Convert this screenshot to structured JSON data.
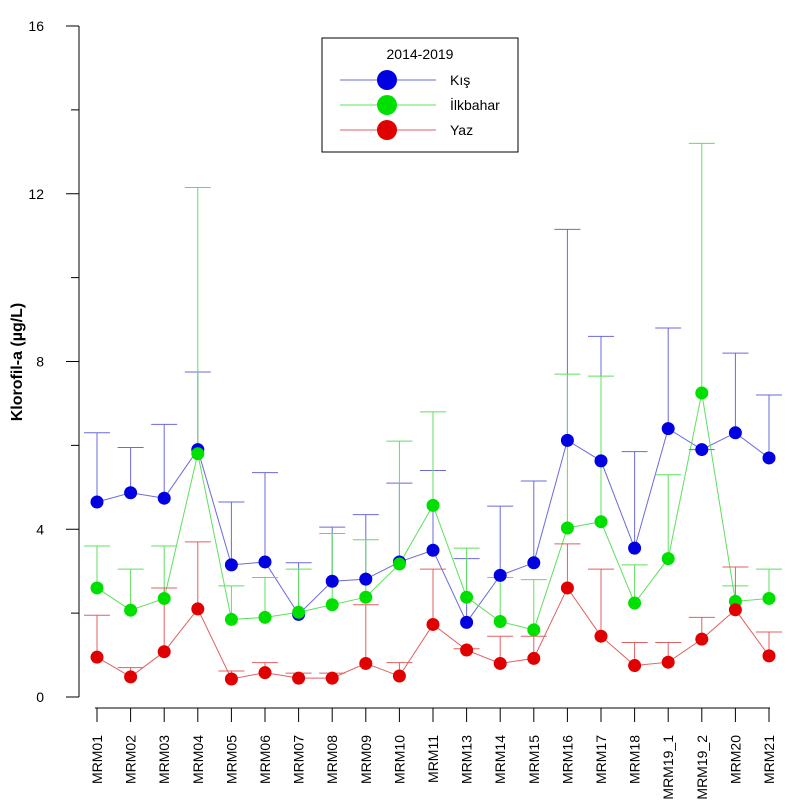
{
  "chart_data": {
    "type": "line",
    "title": "",
    "xlabel": "",
    "ylabel": "Klorofil-a (µg/L)",
    "ylim": [
      0,
      16
    ],
    "yticks": [
      0,
      4,
      8,
      12,
      16
    ],
    "ytick_labels": [
      "0",
      "4",
      "8",
      "12",
      "16"
    ],
    "categories": [
      "MRM01",
      "MRM02",
      "MRM03",
      "MRM04",
      "MRM05",
      "MRM06",
      "MRM07",
      "MRM08",
      "MRM09",
      "MRM10",
      "MRM11",
      "MRM13",
      "MRM14",
      "MRM15",
      "MRM16",
      "MRM17",
      "MRM18",
      "MRM19_1",
      "MRM19_2",
      "MRM20",
      "MRM21"
    ],
    "legend": {
      "title": "2014-2019",
      "placement": "top-center"
    },
    "series": [
      {
        "name": "Kış",
        "color": "#0000e0",
        "line_color": "#6a6adc",
        "values": [
          4.65,
          4.87,
          4.74,
          5.9,
          3.15,
          3.22,
          1.97,
          2.76,
          2.81,
          3.22,
          3.5,
          1.78,
          2.9,
          3.2,
          6.12,
          5.63,
          3.55,
          6.4,
          5.9,
          6.3,
          5.7
        ],
        "upper": [
          6.3,
          5.95,
          6.5,
          7.75,
          4.65,
          5.35,
          3.2,
          4.05,
          4.35,
          5.1,
          5.4,
          3.3,
          4.55,
          5.15,
          11.15,
          8.6,
          5.85,
          8.8,
          5.9,
          8.2,
          7.2
        ]
      },
      {
        "name": "İlkbahar",
        "color": "#00e000",
        "line_color": "#5ee05e",
        "values": [
          2.6,
          2.07,
          2.35,
          5.8,
          1.85,
          1.9,
          2.02,
          2.2,
          2.38,
          3.17,
          4.57,
          2.38,
          1.8,
          1.6,
          4.03,
          4.18,
          2.24,
          3.3,
          7.25,
          2.28,
          2.35
        ],
        "upper": [
          3.6,
          3.05,
          3.6,
          12.15,
          2.65,
          2.85,
          3.05,
          3.9,
          3.75,
          6.1,
          6.8,
          3.55,
          2.85,
          2.8,
          7.7,
          7.65,
          3.15,
          5.3,
          13.2,
          2.65,
          3.05
        ]
      },
      {
        "name": "Yaz",
        "color": "#e00000",
        "line_color": "#e06060",
        "values": [
          0.95,
          0.48,
          1.08,
          2.1,
          0.43,
          0.58,
          0.45,
          0.45,
          0.8,
          0.5,
          1.73,
          1.12,
          0.8,
          0.92,
          2.6,
          1.45,
          0.75,
          0.83,
          1.38,
          2.08,
          0.98
        ],
        "upper": [
          1.95,
          0.7,
          2.6,
          3.7,
          0.62,
          0.82,
          0.57,
          0.57,
          2.2,
          0.82,
          3.05,
          1.15,
          1.45,
          1.45,
          3.65,
          3.05,
          1.3,
          1.3,
          1.9,
          3.1,
          1.55
        ]
      }
    ]
  }
}
